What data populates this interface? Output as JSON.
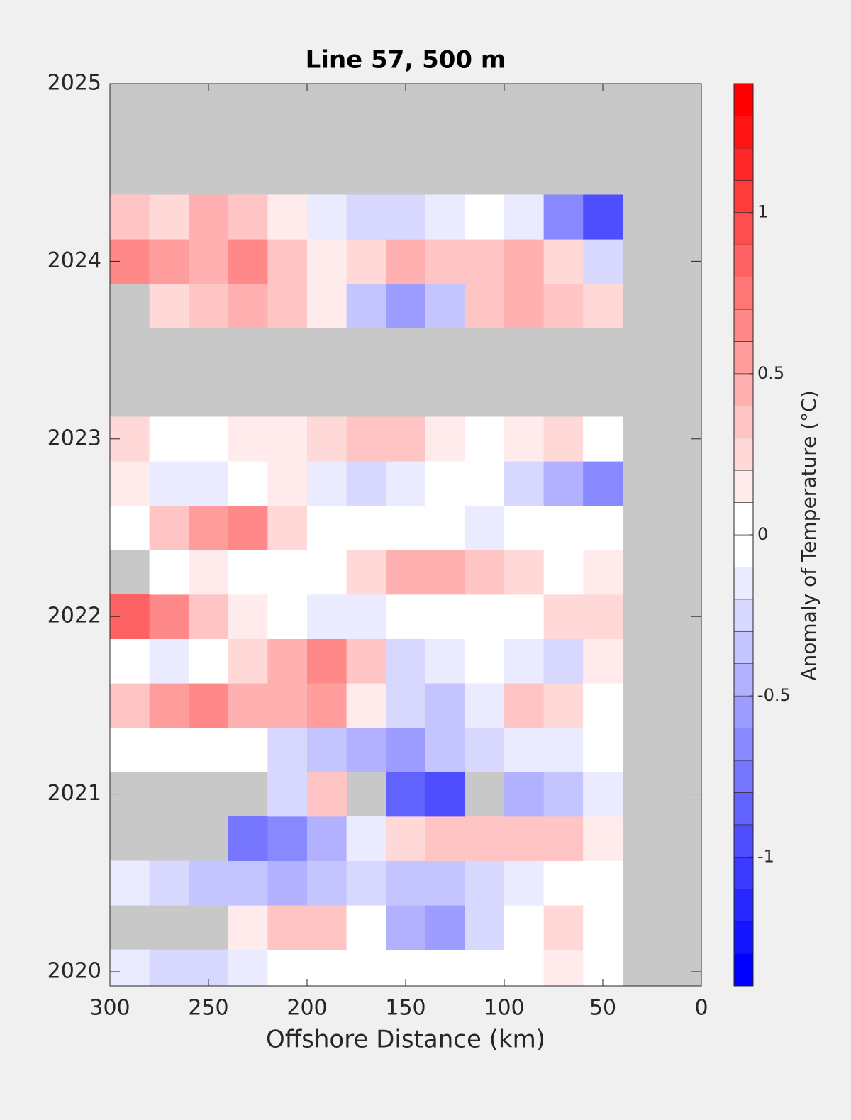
{
  "chart_data": {
    "type": "contourf",
    "title": "Line 57, 500 m",
    "xlabel": "Offshore Distance (km)",
    "colorbar_label": "Anomaly of Temperature (°C)",
    "xlim": [
      300,
      0
    ],
    "xticks": [
      300,
      250,
      200,
      150,
      100,
      50,
      0
    ],
    "ylim": [
      2019.92,
      2025
    ],
    "yticks": [
      2020,
      2021,
      2022,
      2023,
      2024,
      2025
    ],
    "clim": [
      -1.4,
      1.4
    ],
    "cticks": [
      -1,
      -0.5,
      0,
      0.5,
      1
    ],
    "cstep": 0.1,
    "missing_color": "#c8c8c8",
    "x": [
      290,
      270,
      250,
      230,
      210,
      190,
      170,
      150,
      130,
      110,
      90,
      70,
      50
    ],
    "y": [
      2020.0,
      2020.25,
      2020.5,
      2020.75,
      2021.0,
      2021.25,
      2021.5,
      2021.75,
      2022.0,
      2022.25,
      2022.5,
      2022.75,
      2023.0,
      2023.25,
      2023.5,
      2023.75,
      2024.0,
      2024.25
    ],
    "z": [
      [
        -0.1,
        -0.2,
        -0.2,
        -0.1,
        0,
        0,
        0,
        0,
        0,
        0,
        0,
        0.1,
        0
      ],
      [
        null,
        null,
        null,
        0.1,
        0.3,
        0.3,
        0,
        -0.4,
        -0.5,
        -0.2,
        0,
        0.2,
        0
      ],
      [
        -0.1,
        -0.2,
        -0.3,
        -0.3,
        -0.4,
        -0.3,
        -0.2,
        -0.3,
        -0.3,
        -0.2,
        -0.1,
        0,
        0
      ],
      [
        null,
        null,
        null,
        -0.7,
        -0.6,
        -0.4,
        -0.1,
        0.2,
        0.3,
        0.3,
        0.3,
        0.3,
        0.1
      ],
      [
        null,
        null,
        null,
        null,
        -0.2,
        0.3,
        null,
        -0.8,
        -0.9,
        null,
        -0.4,
        -0.3,
        -0.1
      ],
      [
        0,
        0,
        0,
        0,
        -0.2,
        -0.3,
        -0.4,
        -0.5,
        -0.3,
        -0.2,
        -0.1,
        -0.1,
        0
      ],
      [
        0.3,
        0.5,
        0.6,
        0.4,
        0.4,
        0.5,
        0.1,
        -0.2,
        -0.3,
        -0.1,
        0.3,
        0.2,
        0
      ],
      [
        0,
        -0.1,
        0,
        0.2,
        0.4,
        0.6,
        0.3,
        -0.2,
        -0.1,
        0,
        -0.1,
        -0.2,
        0.1
      ],
      [
        0.8,
        0.6,
        0.3,
        0.1,
        0,
        -0.1,
        -0.1,
        0,
        0,
        0,
        0,
        0.2,
        0.2
      ],
      [
        null,
        0,
        0.1,
        0,
        0,
        0,
        0.2,
        0.4,
        0.4,
        0.3,
        0.2,
        0,
        0.1
      ],
      [
        0,
        0.3,
        0.5,
        0.6,
        0.2,
        0,
        0,
        0,
        0,
        -0.1,
        0,
        0,
        0
      ],
      [
        0.1,
        -0.1,
        -0.1,
        0,
        0.1,
        -0.1,
        -0.2,
        -0.1,
        0,
        0,
        -0.2,
        -0.4,
        -0.6
      ],
      [
        0.2,
        0,
        0,
        0.1,
        0.1,
        0.2,
        0.3,
        0.3,
        0.1,
        0,
        0.1,
        0.2,
        0
      ],
      [
        null,
        null,
        null,
        null,
        null,
        null,
        null,
        null,
        null,
        null,
        null,
        null,
        null
      ],
      [
        null,
        null,
        null,
        null,
        null,
        null,
        null,
        null,
        null,
        null,
        null,
        null,
        null
      ],
      [
        null,
        0.2,
        0.3,
        0.4,
        0.3,
        0.1,
        -0.3,
        -0.5,
        -0.3,
        0.3,
        0.4,
        0.3,
        0.2
      ],
      [
        0.6,
        0.5,
        0.4,
        0.6,
        0.3,
        0.1,
        0.2,
        0.4,
        0.3,
        0.3,
        0.4,
        0.2,
        -0.2
      ],
      [
        0.3,
        0.2,
        0.4,
        0.3,
        0.1,
        -0.1,
        -0.2,
        -0.2,
        -0.1,
        0,
        -0.1,
        -0.6,
        -0.9
      ]
    ]
  }
}
